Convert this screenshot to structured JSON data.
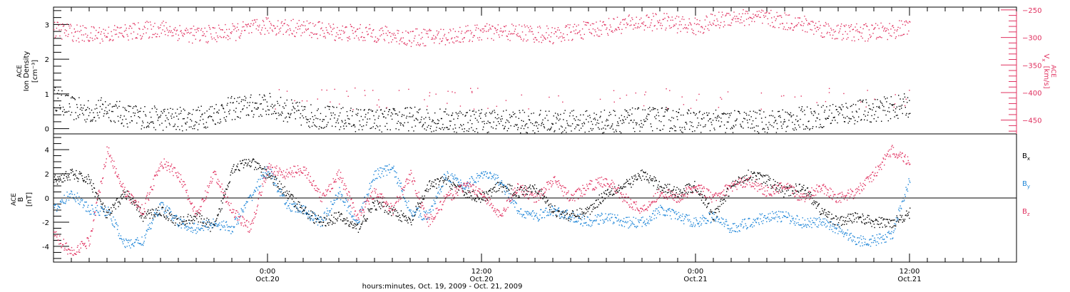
{
  "colors": {
    "black": "#000000",
    "pink": "#e0305f",
    "blue": "#1f86d8"
  },
  "x_axis": {
    "title": "hours:minutes, Oct. 19, 2009 - Oct. 21, 2009",
    "ticks": [
      {
        "time": "0:00",
        "date": "Oct.20",
        "hour": 24
      },
      {
        "time": "12:00",
        "date": "Oct.20",
        "hour": 36
      },
      {
        "time": "0:00",
        "date": "Oct.21",
        "hour": 48
      },
      {
        "time": "12:00",
        "date": "Oct.21",
        "hour": 60
      }
    ]
  },
  "chart_data": [
    {
      "type": "scatter",
      "panel": "top",
      "xlim_hours": [
        12,
        66
      ],
      "data_end_hour": 60,
      "left_axis": {
        "label_line1": "ACE",
        "label_line2": "Ion Density",
        "label_unit": "[cm⁻³]",
        "ylim": [
          -0.15,
          3.5
        ],
        "ticks": [
          0,
          1,
          2,
          3
        ]
      },
      "right_axis": {
        "label_line1": "ACE",
        "label_line2": "V",
        "label_sub": "x",
        "label_unit": "[km/s]",
        "ylim": [
          -475,
          -245
        ],
        "ticks": [
          -250,
          -300,
          -350,
          -400,
          -450
        ]
      },
      "series": [
        {
          "name": "Ion Density",
          "axis": "left",
          "color": "#000000",
          "x": [
            12,
            13,
            14,
            15,
            16,
            18,
            20,
            22,
            24,
            26,
            28,
            30,
            32,
            34,
            36,
            38,
            40,
            42,
            44,
            46,
            48,
            50,
            52,
            54,
            56,
            58,
            59,
            60
          ],
          "y": [
            0.9,
            0.6,
            0.5,
            0.6,
            0.4,
            0.3,
            0.3,
            0.6,
            0.7,
            0.4,
            0.3,
            0.25,
            0.3,
            0.25,
            0.25,
            0.2,
            0.2,
            0.2,
            0.25,
            0.3,
            0.2,
            0.2,
            0.2,
            0.3,
            0.45,
            0.55,
            0.6,
            0.7
          ]
        },
        {
          "name": "V_x",
          "axis": "right",
          "color": "#e0305f",
          "x": [
            12,
            14,
            16,
            18,
            20,
            22,
            24,
            26,
            28,
            30,
            32,
            34,
            36,
            38,
            40,
            42,
            44,
            46,
            48,
            50,
            52,
            54,
            56,
            58,
            60
          ],
          "y": [
            -285,
            -295,
            -290,
            -283,
            -295,
            -290,
            -278,
            -283,
            -290,
            -292,
            -300,
            -297,
            -290,
            -290,
            -295,
            -285,
            -275,
            -270,
            -280,
            -262,
            -265,
            -275,
            -290,
            -290,
            -282
          ]
        }
      ]
    },
    {
      "type": "scatter",
      "panel": "bottom",
      "xlim_hours": [
        12,
        66
      ],
      "data_end_hour": 60,
      "left_axis": {
        "label_line1": "ACE",
        "label_line2": "B",
        "label_unit": "[nT]",
        "ylim": [
          -5.3,
          5.3
        ],
        "ticks": [
          4,
          2,
          0,
          -2,
          -4
        ]
      },
      "series": [
        {
          "name": "B_x",
          "label": "B",
          "sub": "x",
          "color": "#000000",
          "x": [
            12,
            13,
            14,
            15,
            16,
            17,
            18,
            19,
            20,
            21,
            22,
            23,
            24,
            25,
            26,
            27,
            28,
            29,
            30,
            31,
            32,
            33,
            34,
            35,
            36,
            37,
            38,
            39,
            40,
            41,
            42,
            43,
            44,
            45,
            46,
            47,
            48,
            49,
            50,
            51,
            52,
            53,
            54,
            55,
            56,
            57,
            58,
            59,
            60
          ],
          "y": [
            1.5,
            2.0,
            1.5,
            -1.5,
            0.5,
            -1.5,
            -1.0,
            -2.0,
            -1.5,
            -2.5,
            2.5,
            3.0,
            2.0,
            0.5,
            -1.0,
            -2.0,
            -1.5,
            -2.5,
            -0.5,
            -1.0,
            -2.0,
            1.0,
            1.5,
            0.5,
            0.0,
            1.0,
            0.5,
            1.0,
            -1.0,
            -1.5,
            -1.0,
            0.5,
            1.0,
            2.0,
            1.0,
            0.5,
            1.0,
            -1.5,
            1.0,
            2.0,
            1.5,
            0.5,
            1.0,
            -1.0,
            -2.0,
            -1.5,
            -2.0,
            -2.0,
            -1.2
          ]
        },
        {
          "name": "B_y",
          "label": "B",
          "sub": "y",
          "color": "#1f86d8",
          "x": [
            12,
            13,
            14,
            15,
            16,
            17,
            18,
            19,
            20,
            21,
            22,
            23,
            24,
            25,
            26,
            27,
            28,
            29,
            30,
            31,
            32,
            33,
            34,
            35,
            36,
            37,
            38,
            39,
            40,
            41,
            42,
            43,
            44,
            45,
            46,
            47,
            48,
            49,
            50,
            51,
            52,
            53,
            54,
            55,
            56,
            57,
            58,
            59,
            60
          ],
          "y": [
            -1.0,
            0.5,
            -1.0,
            -1.0,
            -3.8,
            -3.5,
            -0.5,
            -2.0,
            -2.5,
            -2.0,
            -2.5,
            0.0,
            2.5,
            -0.5,
            -1.0,
            -2.0,
            0.5,
            -2.0,
            2.0,
            2.5,
            -1.0,
            -1.5,
            2.0,
            1.0,
            2.0,
            1.5,
            -1.0,
            -1.5,
            -1.0,
            -1.5,
            -2.0,
            -1.5,
            -2.0,
            -2.0,
            -1.0,
            -1.5,
            -2.0,
            -1.5,
            -2.5,
            -2.0,
            -1.5,
            -1.5,
            -2.0,
            -2.0,
            -2.5,
            -3.5,
            -3.5,
            -3.0,
            1.5
          ]
        },
        {
          "name": "B_z",
          "label": "B",
          "sub": "z",
          "color": "#e0305f",
          "x": [
            12,
            13,
            14,
            15,
            16,
            17,
            18,
            19,
            20,
            21,
            22,
            23,
            24,
            25,
            26,
            27,
            28,
            29,
            30,
            31,
            32,
            33,
            34,
            35,
            36,
            37,
            38,
            39,
            40,
            41,
            42,
            43,
            44,
            45,
            46,
            47,
            48,
            49,
            50,
            51,
            52,
            53,
            54,
            55,
            56,
            57,
            58,
            59,
            60
          ],
          "y": [
            -3.0,
            -4.5,
            -3.5,
            4.0,
            0.5,
            -1.0,
            3.0,
            2.0,
            -1.5,
            2.0,
            -1.0,
            -2.5,
            2.5,
            2.0,
            2.5,
            0.0,
            2.0,
            -1.5,
            0.5,
            -1.0,
            2.0,
            -2.0,
            0.0,
            1.0,
            0.5,
            -1.5,
            1.0,
            0.0,
            1.5,
            0.0,
            1.0,
            1.5,
            0.0,
            -1.0,
            0.5,
            0.0,
            1.0,
            0.0,
            1.0,
            1.5,
            0.5,
            1.0,
            0.0,
            1.0,
            0.0,
            0.5,
            2.0,
            4.0,
            3.0
          ]
        }
      ]
    }
  ]
}
